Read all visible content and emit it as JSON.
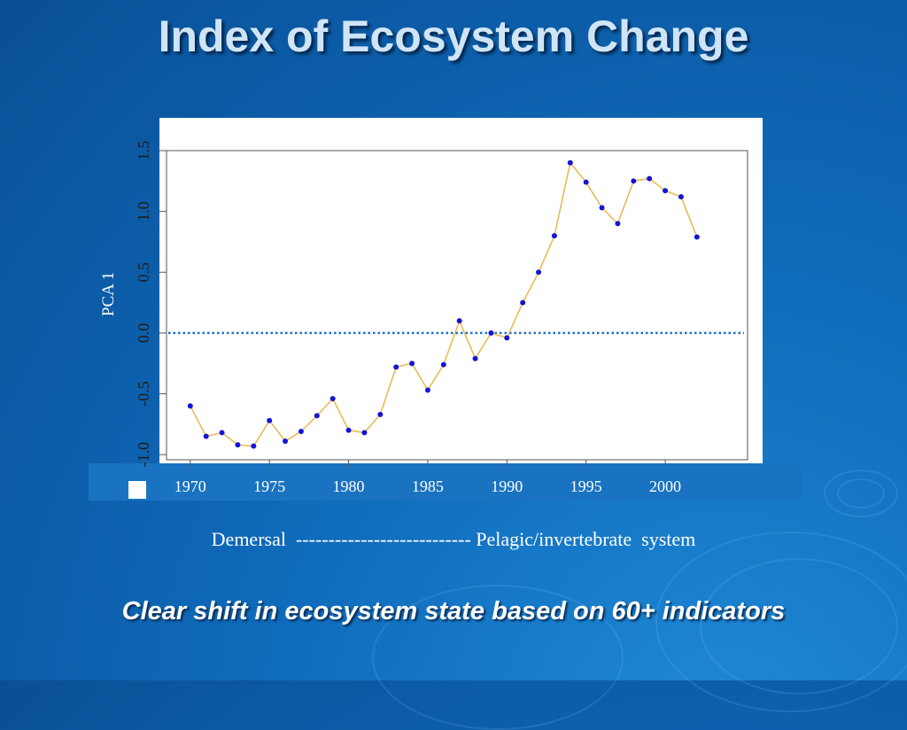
{
  "slide": {
    "title": "Index of Ecosystem Change",
    "scale_caption": "Demersal  --------------------------- Pelagic/invertebrate  system",
    "subtitle": "Clear shift in ecosystem state based on 60+ indicators"
  },
  "chart_data": {
    "type": "line",
    "ylabel": "PCA 1",
    "xlabel": "",
    "xlim": [
      1968.5,
      2005.2
    ],
    "ylim": [
      -1.05,
      1.5
    ],
    "xticks": [
      1970,
      1975,
      1980,
      1985,
      1990,
      1995,
      2000
    ],
    "yticks": [
      -1.0,
      -0.5,
      0.0,
      0.5,
      1.0,
      1.5
    ],
    "ytick_labels": [
      "-1.0",
      "-0.5",
      "0.0",
      "0.5",
      "1.0",
      "1.5"
    ],
    "reference_line": {
      "y": 0.0,
      "style": "dotted",
      "color": "#1a6fd0"
    },
    "series": [
      {
        "x": [
          1970,
          1971,
          1972,
          1973,
          1974,
          1975,
          1976,
          1977,
          1978,
          1979,
          1980,
          1981,
          1982,
          1983,
          1984,
          1985,
          1986,
          1987,
          1988,
          1989,
          1990,
          1991,
          1992,
          1993,
          1994,
          1995,
          1996,
          1997,
          1998,
          1999,
          2000,
          2001,
          2002
        ],
        "y": [
          -0.6,
          -0.85,
          -0.82,
          -0.92,
          -0.93,
          -0.72,
          -0.89,
          -0.81,
          -0.68,
          -0.54,
          -0.8,
          -0.82,
          -0.67,
          -0.28,
          -0.25,
          -0.47,
          -0.26,
          0.1,
          -0.21,
          0.0,
          -0.04,
          0.25,
          0.5,
          0.8,
          1.4,
          1.24,
          1.03,
          0.9,
          1.25,
          1.27,
          1.17,
          1.12,
          0.79
        ],
        "line_color": "#e8b84a",
        "marker_color": "#1414d8"
      }
    ]
  },
  "colors": {
    "background": "#0f6bbb",
    "title_text": "#cfe5f7",
    "axis_strip": "#1a73c0",
    "plot_background": "#ffffff"
  }
}
